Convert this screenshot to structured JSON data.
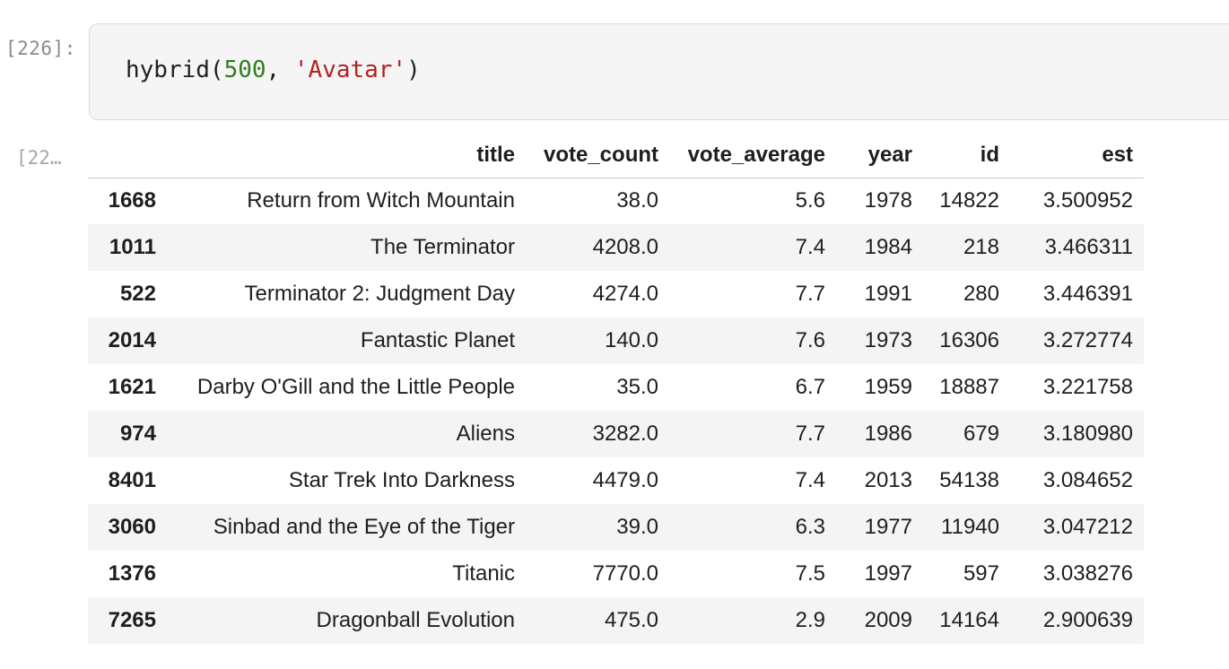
{
  "input_cell": {
    "prompt": "[226]:",
    "code": {
      "fn": "hybrid(",
      "arg_num": "500",
      "sep": ", ",
      "arg_str": "'Avatar'",
      "close": ")"
    }
  },
  "output_cell": {
    "prompt": "[22…",
    "table": {
      "columns": [
        "",
        "title",
        "vote_count",
        "vote_average",
        "year",
        "id",
        "est"
      ],
      "rows": [
        {
          "index": "1668",
          "title": "Return from Witch Mountain",
          "vote_count": "38.0",
          "vote_average": "5.6",
          "year": "1978",
          "id": "14822",
          "est": "3.500952"
        },
        {
          "index": "1011",
          "title": "The Terminator",
          "vote_count": "4208.0",
          "vote_average": "7.4",
          "year": "1984",
          "id": "218",
          "est": "3.466311"
        },
        {
          "index": "522",
          "title": "Terminator 2: Judgment Day",
          "vote_count": "4274.0",
          "vote_average": "7.7",
          "year": "1991",
          "id": "280",
          "est": "3.446391"
        },
        {
          "index": "2014",
          "title": "Fantastic Planet",
          "vote_count": "140.0",
          "vote_average": "7.6",
          "year": "1973",
          "id": "16306",
          "est": "3.272774"
        },
        {
          "index": "1621",
          "title": "Darby O'Gill and the Little People",
          "vote_count": "35.0",
          "vote_average": "6.7",
          "year": "1959",
          "id": "18887",
          "est": "3.221758"
        },
        {
          "index": "974",
          "title": "Aliens",
          "vote_count": "3282.0",
          "vote_average": "7.7",
          "year": "1986",
          "id": "679",
          "est": "3.180980"
        },
        {
          "index": "8401",
          "title": "Star Trek Into Darkness",
          "vote_count": "4479.0",
          "vote_average": "7.4",
          "year": "2013",
          "id": "54138",
          "est": "3.084652"
        },
        {
          "index": "3060",
          "title": "Sinbad and the Eye of the Tiger",
          "vote_count": "39.0",
          "vote_average": "6.3",
          "year": "1977",
          "id": "11940",
          "est": "3.047212"
        },
        {
          "index": "1376",
          "title": "Titanic",
          "vote_count": "7770.0",
          "vote_average": "7.5",
          "year": "1997",
          "id": "597",
          "est": "3.038276"
        },
        {
          "index": "7265",
          "title": "Dragonball Evolution",
          "vote_count": "475.0",
          "vote_average": "2.9",
          "year": "2009",
          "id": "14164",
          "est": "2.900639"
        }
      ]
    }
  },
  "colors": {
    "code_number": "#2f7d1e",
    "code_string": "#b22222",
    "code_bg": "#f5f5f5",
    "stripe_bg": "#f4f4f4"
  }
}
